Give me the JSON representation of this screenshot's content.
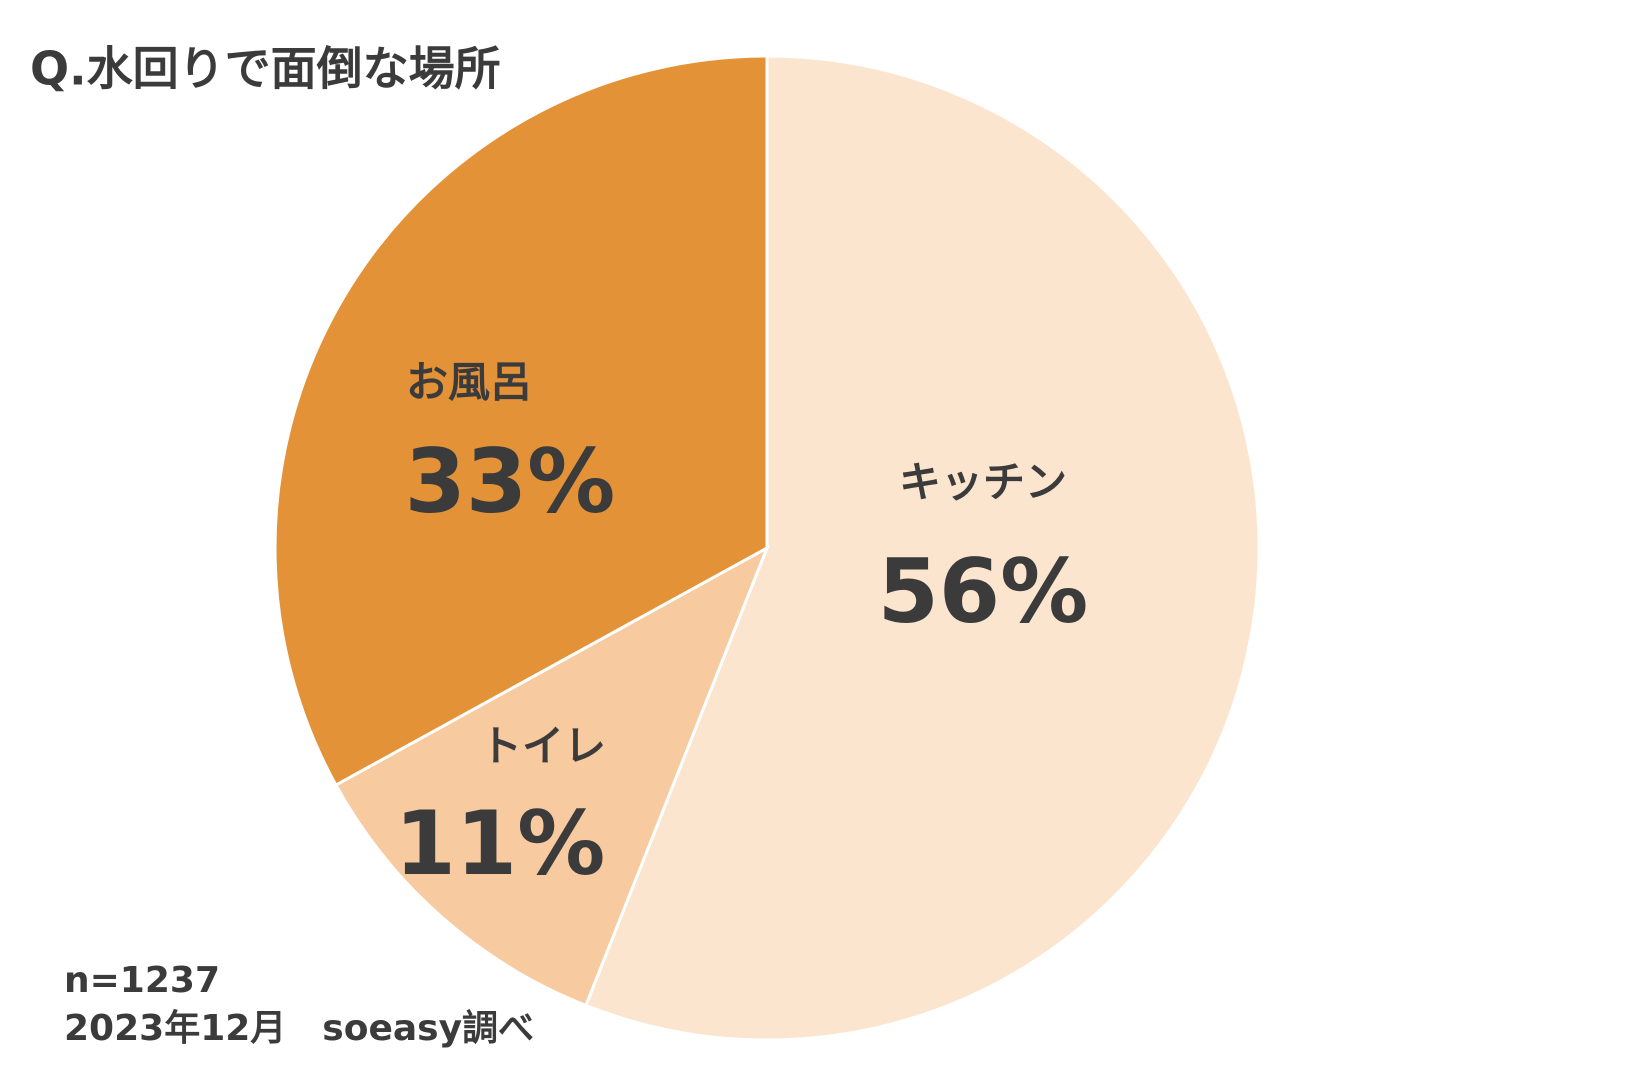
{
  "chart_data": {
    "type": "pie",
    "title": "Q.水回りで面倒な場所",
    "categories": [
      "キッチン",
      "トイレ",
      "お風呂"
    ],
    "values": [
      56,
      11,
      33
    ],
    "value_labels": [
      "56%",
      "11%",
      "33%"
    ],
    "colors": [
      "#fbe5cf",
      "#f7caa0",
      "#e39238"
    ],
    "notes": [
      "n=1237",
      "2023年12月　soeasy調べ"
    ]
  }
}
